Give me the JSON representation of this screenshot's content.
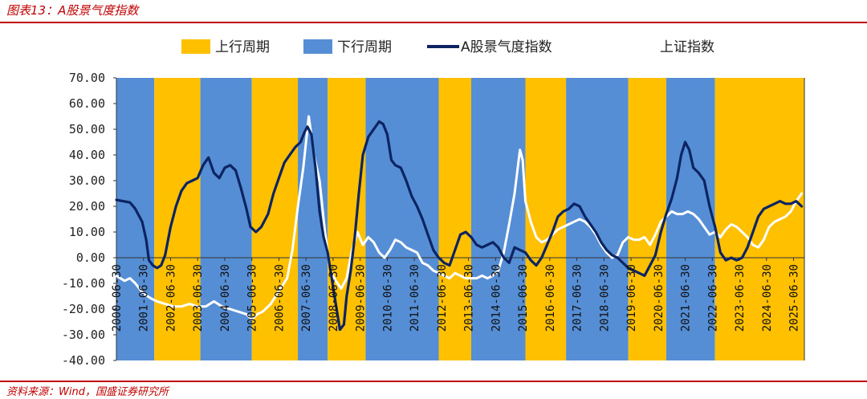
{
  "figure_title": "图表13：A股景气度指数",
  "source_note": "资料来源：Wind，国盛证券研究所",
  "chart_data": {
    "type": "line",
    "ylim": [
      -40,
      70
    ],
    "y_ticks": [
      "70.00",
      "60.00",
      "50.00",
      "40.00",
      "30.00",
      "20.00",
      "10.00",
      "0.00",
      "-10.00",
      "-20.00",
      "-30.00",
      "-40.00"
    ],
    "x_range": [
      2000.5,
      2025.9
    ],
    "x_ticks": [
      "2000-06-30",
      "2001-06-30",
      "2002-06-30",
      "2003-06-30",
      "2004-06-30",
      "2005-06-30",
      "2006-06-30",
      "2007-06-30",
      "2008-06-30",
      "2009-06-30",
      "2010-06-30",
      "2011-06-30",
      "2012-06-30",
      "2013-06-30",
      "2014-06-30",
      "2015-06-30",
      "2016-06-30",
      "2017-06-30",
      "2018-06-30",
      "2019-06-30",
      "2020-06-30",
      "2021-06-30",
      "2022-06-30",
      "2023-06-30",
      "2024-06-30",
      "2025-06-30"
    ],
    "legend": [
      {
        "label": "上行周期",
        "kind": "patch",
        "color": "#ffc000"
      },
      {
        "label": "下行周期",
        "kind": "patch",
        "color": "#558ed5"
      },
      {
        "label": "A股景气度指数",
        "kind": "line",
        "color": "#0c2461"
      },
      {
        "label": "上证指数",
        "kind": "line",
        "color": "#ffffff"
      }
    ],
    "regimes": [
      {
        "start": 2000.5,
        "end": 2001.9,
        "phase": "下行周期"
      },
      {
        "start": 2001.9,
        "end": 2003.6,
        "phase": "上行周期"
      },
      {
        "start": 2003.6,
        "end": 2005.5,
        "phase": "下行周期"
      },
      {
        "start": 2005.5,
        "end": 2007.2,
        "phase": "上行周期"
      },
      {
        "start": 2007.2,
        "end": 2008.3,
        "phase": "下行周期"
      },
      {
        "start": 2008.3,
        "end": 2009.7,
        "phase": "上行周期"
      },
      {
        "start": 2009.7,
        "end": 2012.4,
        "phase": "下行周期"
      },
      {
        "start": 2012.4,
        "end": 2013.6,
        "phase": "上行周期"
      },
      {
        "start": 2013.6,
        "end": 2015.6,
        "phase": "下行周期"
      },
      {
        "start": 2015.6,
        "end": 2017.1,
        "phase": "上行周期"
      },
      {
        "start": 2017.1,
        "end": 2019.4,
        "phase": "下行周期"
      },
      {
        "start": 2019.4,
        "end": 2020.8,
        "phase": "上行周期"
      },
      {
        "start": 2020.8,
        "end": 2022.6,
        "phase": "下行周期"
      },
      {
        "start": 2022.6,
        "end": 2024.3,
        "phase": "上行周期"
      },
      {
        "start": 2024.3,
        "end": 2025.9,
        "phase": "上行周期"
      }
    ],
    "series": [
      {
        "name": "A股景气度指数",
        "color": "#0c2461",
        "points": [
          [
            2000.5,
            22.5
          ],
          [
            2000.75,
            22
          ],
          [
            2001.0,
            21.5
          ],
          [
            2001.2,
            19
          ],
          [
            2001.45,
            14
          ],
          [
            2001.6,
            7
          ],
          [
            2001.7,
            -1
          ],
          [
            2001.85,
            -3
          ],
          [
            2002.0,
            -4
          ],
          [
            2002.15,
            -3
          ],
          [
            2002.3,
            1
          ],
          [
            2002.5,
            12
          ],
          [
            2002.7,
            20
          ],
          [
            2002.9,
            26
          ],
          [
            2003.1,
            29
          ],
          [
            2003.3,
            30
          ],
          [
            2003.5,
            31
          ],
          [
            2003.7,
            36
          ],
          [
            2003.9,
            39
          ],
          [
            2004.1,
            33
          ],
          [
            2004.3,
            31
          ],
          [
            2004.5,
            35
          ],
          [
            2004.7,
            36
          ],
          [
            2004.9,
            34
          ],
          [
            2005.1,
            27
          ],
          [
            2005.3,
            19
          ],
          [
            2005.45,
            12
          ],
          [
            2005.65,
            10
          ],
          [
            2005.85,
            12
          ],
          [
            2006.1,
            17
          ],
          [
            2006.3,
            25
          ],
          [
            2006.5,
            31
          ],
          [
            2006.7,
            37
          ],
          [
            2006.9,
            40
          ],
          [
            2007.1,
            43
          ],
          [
            2007.3,
            45
          ],
          [
            2007.45,
            49
          ],
          [
            2007.55,
            51
          ],
          [
            2007.7,
            48
          ],
          [
            2007.85,
            35
          ],
          [
            2008.0,
            18
          ],
          [
            2008.15,
            8
          ],
          [
            2008.3,
            2
          ],
          [
            2008.45,
            -8
          ],
          [
            2008.6,
            -18
          ],
          [
            2008.75,
            -28
          ],
          [
            2008.9,
            -26
          ],
          [
            2009.0,
            -15
          ],
          [
            2009.15,
            -5
          ],
          [
            2009.3,
            8
          ],
          [
            2009.45,
            25
          ],
          [
            2009.6,
            40
          ],
          [
            2009.8,
            47
          ],
          [
            2010.0,
            50
          ],
          [
            2010.2,
            53
          ],
          [
            2010.35,
            52
          ],
          [
            2010.5,
            48
          ],
          [
            2010.65,
            38
          ],
          [
            2010.8,
            36
          ],
          [
            2011.0,
            35
          ],
          [
            2011.2,
            30
          ],
          [
            2011.4,
            24
          ],
          [
            2011.6,
            20
          ],
          [
            2011.8,
            15
          ],
          [
            2012.0,
            9
          ],
          [
            2012.2,
            3
          ],
          [
            2012.4,
            0
          ],
          [
            2012.6,
            -2
          ],
          [
            2012.8,
            -3
          ],
          [
            2013.0,
            3
          ],
          [
            2013.2,
            9
          ],
          [
            2013.4,
            10
          ],
          [
            2013.6,
            8
          ],
          [
            2013.8,
            5
          ],
          [
            2014.0,
            4
          ],
          [
            2014.2,
            5
          ],
          [
            2014.4,
            6
          ],
          [
            2014.6,
            4
          ],
          [
            2014.8,
            0
          ],
          [
            2015.0,
            -2
          ],
          [
            2015.2,
            4
          ],
          [
            2015.4,
            3
          ],
          [
            2015.6,
            2
          ],
          [
            2015.8,
            -1
          ],
          [
            2016.0,
            -3
          ],
          [
            2016.2,
            0
          ],
          [
            2016.4,
            5
          ],
          [
            2016.6,
            10
          ],
          [
            2016.8,
            16
          ],
          [
            2017.0,
            18
          ],
          [
            2017.2,
            19
          ],
          [
            2017.4,
            21
          ],
          [
            2017.6,
            20
          ],
          [
            2017.8,
            16
          ],
          [
            2018.0,
            13
          ],
          [
            2018.2,
            10
          ],
          [
            2018.4,
            6
          ],
          [
            2018.6,
            3
          ],
          [
            2018.8,
            1
          ],
          [
            2019.0,
            0
          ],
          [
            2019.2,
            -2
          ],
          [
            2019.4,
            -4
          ],
          [
            2019.6,
            -5
          ],
          [
            2019.8,
            -6
          ],
          [
            2020.0,
            -7
          ],
          [
            2020.2,
            -3
          ],
          [
            2020.4,
            1
          ],
          [
            2020.6,
            10
          ],
          [
            2020.8,
            17
          ],
          [
            2021.0,
            23
          ],
          [
            2021.2,
            31
          ],
          [
            2021.35,
            40
          ],
          [
            2021.5,
            45
          ],
          [
            2021.65,
            42
          ],
          [
            2021.8,
            35
          ],
          [
            2022.0,
            33
          ],
          [
            2022.2,
            30
          ],
          [
            2022.4,
            20
          ],
          [
            2022.6,
            12
          ],
          [
            2022.8,
            2
          ],
          [
            2023.0,
            -1
          ],
          [
            2023.2,
            0
          ],
          [
            2023.4,
            -1
          ],
          [
            2023.6,
            0
          ],
          [
            2023.8,
            4
          ],
          [
            2024.0,
            10
          ],
          [
            2024.2,
            16
          ],
          [
            2024.4,
            19
          ],
          [
            2024.6,
            20
          ],
          [
            2024.8,
            21
          ],
          [
            2025.0,
            22
          ],
          [
            2025.2,
            21
          ],
          [
            2025.4,
            21
          ],
          [
            2025.6,
            22
          ],
          [
            2025.8,
            20
          ]
        ]
      },
      {
        "name": "上证指数",
        "color": "#ffffff",
        "points": [
          [
            2000.5,
            -7
          ],
          [
            2000.8,
            -9
          ],
          [
            2001.0,
            -8
          ],
          [
            2001.2,
            -10
          ],
          [
            2001.5,
            -14
          ],
          [
            2001.8,
            -16
          ],
          [
            2002.0,
            -17
          ],
          [
            2002.3,
            -18
          ],
          [
            2002.6,
            -19
          ],
          [
            2002.9,
            -19
          ],
          [
            2003.2,
            -18
          ],
          [
            2003.5,
            -19
          ],
          [
            2003.8,
            -19
          ],
          [
            2004.1,
            -17
          ],
          [
            2004.4,
            -19
          ],
          [
            2004.7,
            -20
          ],
          [
            2005.0,
            -21
          ],
          [
            2005.3,
            -22
          ],
          [
            2005.5,
            -24
          ],
          [
            2005.7,
            -22
          ],
          [
            2005.9,
            -21
          ],
          [
            2006.2,
            -18
          ],
          [
            2006.5,
            -13
          ],
          [
            2006.8,
            -8
          ],
          [
            2007.0,
            3
          ],
          [
            2007.2,
            20
          ],
          [
            2007.4,
            35
          ],
          [
            2007.6,
            55
          ],
          [
            2007.8,
            40
          ],
          [
            2008.0,
            30
          ],
          [
            2008.2,
            10
          ],
          [
            2008.4,
            -5
          ],
          [
            2008.6,
            -9
          ],
          [
            2008.8,
            -12
          ],
          [
            2009.0,
            -8
          ],
          [
            2009.2,
            3
          ],
          [
            2009.4,
            10
          ],
          [
            2009.6,
            5
          ],
          [
            2009.8,
            8
          ],
          [
            2010.0,
            6
          ],
          [
            2010.2,
            2
          ],
          [
            2010.4,
            0
          ],
          [
            2010.6,
            3
          ],
          [
            2010.8,
            7
          ],
          [
            2011.0,
            6
          ],
          [
            2011.2,
            4
          ],
          [
            2011.4,
            3
          ],
          [
            2011.6,
            2
          ],
          [
            2011.8,
            -2
          ],
          [
            2012.0,
            -3
          ],
          [
            2012.2,
            -5
          ],
          [
            2012.4,
            -6
          ],
          [
            2012.6,
            -7
          ],
          [
            2012.8,
            -8
          ],
          [
            2013.0,
            -6
          ],
          [
            2013.2,
            -7
          ],
          [
            2013.4,
            -8
          ],
          [
            2013.6,
            -8
          ],
          [
            2013.8,
            -8
          ],
          [
            2014.0,
            -7
          ],
          [
            2014.2,
            -8
          ],
          [
            2014.4,
            -7
          ],
          [
            2014.6,
            -5
          ],
          [
            2014.8,
            2
          ],
          [
            2015.0,
            13
          ],
          [
            2015.2,
            25
          ],
          [
            2015.4,
            42
          ],
          [
            2015.5,
            38
          ],
          [
            2015.6,
            22
          ],
          [
            2015.8,
            14
          ],
          [
            2016.0,
            8
          ],
          [
            2016.2,
            6
          ],
          [
            2016.4,
            7
          ],
          [
            2016.6,
            9
          ],
          [
            2016.8,
            11
          ],
          [
            2017.0,
            12
          ],
          [
            2017.2,
            13
          ],
          [
            2017.4,
            14
          ],
          [
            2017.6,
            15
          ],
          [
            2017.8,
            14
          ],
          [
            2018.0,
            12
          ],
          [
            2018.2,
            9
          ],
          [
            2018.4,
            5
          ],
          [
            2018.6,
            2
          ],
          [
            2018.8,
            0
          ],
          [
            2019.0,
            1
          ],
          [
            2019.2,
            6
          ],
          [
            2019.4,
            8
          ],
          [
            2019.6,
            7
          ],
          [
            2019.8,
            7
          ],
          [
            2020.0,
            8
          ],
          [
            2020.2,
            5
          ],
          [
            2020.4,
            9
          ],
          [
            2020.6,
            14
          ],
          [
            2020.8,
            16
          ],
          [
            2021.0,
            18
          ],
          [
            2021.2,
            17
          ],
          [
            2021.4,
            17
          ],
          [
            2021.6,
            18
          ],
          [
            2021.8,
            17
          ],
          [
            2022.0,
            15
          ],
          [
            2022.2,
            12
          ],
          [
            2022.4,
            9
          ],
          [
            2022.6,
            10
          ],
          [
            2022.8,
            8
          ],
          [
            2023.0,
            11
          ],
          [
            2023.2,
            13
          ],
          [
            2023.4,
            12
          ],
          [
            2023.6,
            10
          ],
          [
            2023.8,
            8
          ],
          [
            2024.0,
            5
          ],
          [
            2024.2,
            4
          ],
          [
            2024.4,
            7
          ],
          [
            2024.6,
            12
          ],
          [
            2024.8,
            14
          ],
          [
            2025.0,
            15
          ],
          [
            2025.2,
            16
          ],
          [
            2025.4,
            18
          ],
          [
            2025.6,
            22
          ],
          [
            2025.8,
            25
          ]
        ]
      }
    ]
  }
}
